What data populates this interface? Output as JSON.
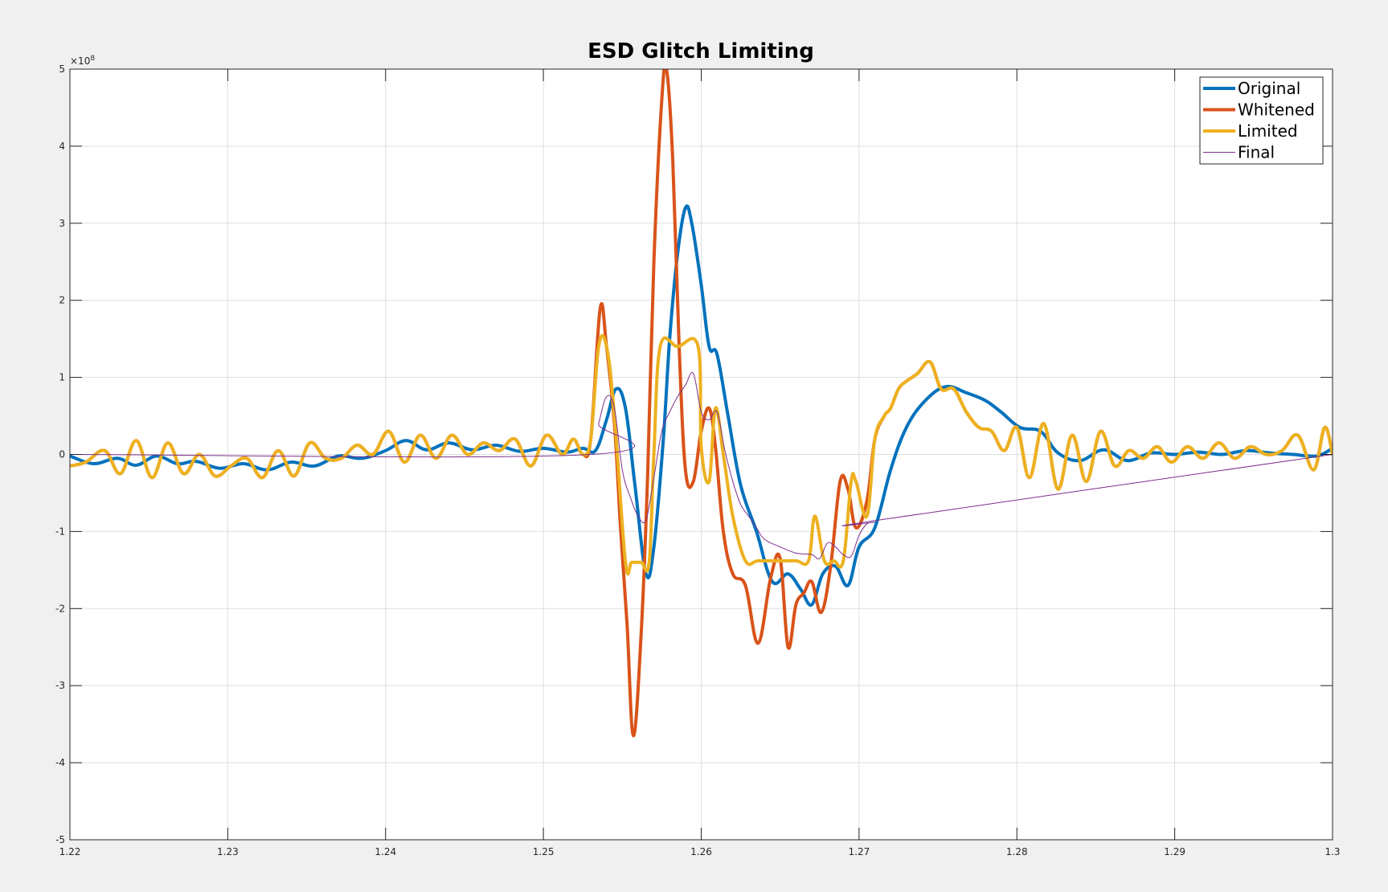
{
  "chart_data": {
    "type": "line",
    "title": "ESD Glitch Limiting",
    "xlabel": "",
    "ylabel": "",
    "xlim": [
      1.22,
      1.3
    ],
    "ylim": [
      -5,
      5
    ],
    "y_exponent_label": "×10",
    "y_exponent_power": "8",
    "x_ticks": [
      1.22,
      1.23,
      1.24,
      1.25,
      1.26,
      1.27,
      1.28,
      1.29,
      1.3
    ],
    "x_tick_labels": [
      "1.22",
      "1.23",
      "1.24",
      "1.25",
      "1.26",
      "1.27",
      "1.28",
      "1.29",
      "1.3"
    ],
    "y_ticks": [
      -5,
      -4,
      -3,
      -2,
      -1,
      0,
      1,
      2,
      3,
      4,
      5
    ],
    "y_tick_labels": [
      "-5",
      "-4",
      "-3",
      "-2",
      "-1",
      "0",
      "1",
      "2",
      "3",
      "4",
      "5"
    ],
    "grid": true,
    "legend_position": "top-right",
    "series": [
      {
        "name": "Original",
        "color": "#0072BD",
        "x": [
          1.22,
          1.2215,
          1.223,
          1.2242,
          1.2255,
          1.2268,
          1.228,
          1.2295,
          1.231,
          1.2325,
          1.234,
          1.2355,
          1.237,
          1.2385,
          1.24,
          1.2413,
          1.2426,
          1.244,
          1.2455,
          1.247,
          1.2485,
          1.25,
          1.2515,
          1.2525,
          1.2533,
          1.254,
          1.2546,
          1.2552,
          1.2558,
          1.2565,
          1.257,
          1.2576,
          1.258,
          1.2585,
          1.259,
          1.2594,
          1.26,
          1.2605,
          1.261,
          1.2617,
          1.2625,
          1.2635,
          1.2645,
          1.2655,
          1.2663,
          1.267,
          1.2677,
          1.2685,
          1.2693,
          1.27,
          1.271,
          1.272,
          1.273,
          1.2742,
          1.2755,
          1.2768,
          1.278,
          1.279,
          1.2802,
          1.2815,
          1.2826,
          1.284,
          1.2855,
          1.287,
          1.2885,
          1.29,
          1.2915,
          1.293,
          1.2945,
          1.296,
          1.2975,
          1.299,
          1.3
        ],
        "y": [
          -0.02,
          -0.12,
          -0.05,
          -0.14,
          -0.02,
          -0.12,
          -0.09,
          -0.18,
          -0.12,
          -0.2,
          -0.1,
          -0.15,
          -0.02,
          -0.05,
          0.05,
          0.18,
          0.06,
          0.15,
          0.06,
          0.12,
          0.04,
          0.08,
          0.03,
          0.08,
          0.05,
          0.45,
          0.85,
          0.6,
          -0.4,
          -1.55,
          -1.2,
          0.2,
          1.5,
          2.6,
          3.2,
          3.0,
          2.2,
          1.4,
          1.3,
          0.5,
          -0.4,
          -1.0,
          -1.65,
          -1.55,
          -1.75,
          -1.95,
          -1.55,
          -1.45,
          -1.7,
          -1.2,
          -0.95,
          -0.2,
          0.35,
          0.7,
          0.88,
          0.8,
          0.7,
          0.55,
          0.35,
          0.3,
          0.02,
          -0.08,
          0.06,
          -0.08,
          0.02,
          0.0,
          0.03,
          0.0,
          0.05,
          0.02,
          0.0,
          -0.02,
          0.08
        ]
      },
      {
        "name": "Whitened",
        "color": "#D95319",
        "x": [
          1.22,
          1.221,
          1.2222,
          1.2232,
          1.2242,
          1.2252,
          1.2262,
          1.2272,
          1.2282,
          1.2292,
          1.2302,
          1.2312,
          1.2322,
          1.2332,
          1.2342,
          1.2352,
          1.2362,
          1.2372,
          1.2382,
          1.2392,
          1.2402,
          1.2412,
          1.2422,
          1.2432,
          1.2442,
          1.2452,
          1.2462,
          1.2472,
          1.2482,
          1.2492,
          1.2502,
          1.2512,
          1.2519,
          1.2525,
          1.253,
          1.2536,
          1.254,
          1.2545,
          1.2549,
          1.2553,
          1.2557,
          1.2562,
          1.2566,
          1.257,
          1.2575,
          1.2578,
          1.2582,
          1.2586,
          1.259,
          1.2595,
          1.26,
          1.2605,
          1.2609,
          1.2614,
          1.262,
          1.2628,
          1.2636,
          1.2644,
          1.265,
          1.2655,
          1.266,
          1.2665,
          1.267,
          1.2676,
          1.2682,
          1.2688,
          1.2693,
          1.2698,
          1.2705,
          1.271,
          1.2716,
          1.272,
          1.2725,
          1.273,
          1.2737,
          1.2745,
          1.2752,
          1.276,
          1.2768,
          1.2776,
          1.2784,
          1.2792,
          1.28,
          1.2808,
          1.2817,
          1.2826,
          1.2835,
          1.2844,
          1.2853,
          1.2862,
          1.2871,
          1.288,
          1.2889,
          1.2898,
          1.2908,
          1.2918,
          1.2928,
          1.2938,
          1.2948,
          1.2958,
          1.2968,
          1.2978,
          1.2988,
          1.2995,
          1.3
        ],
        "y": [
          -0.15,
          -0.1,
          0.05,
          -0.25,
          0.18,
          -0.3,
          0.15,
          -0.25,
          0.0,
          -0.28,
          -0.15,
          -0.05,
          -0.3,
          0.05,
          -0.28,
          0.15,
          -0.05,
          -0.05,
          0.12,
          0.0,
          0.3,
          -0.1,
          0.25,
          -0.05,
          0.25,
          0.0,
          0.15,
          0.05,
          0.2,
          -0.15,
          0.25,
          0.0,
          0.2,
          0.0,
          0.2,
          1.9,
          1.4,
          0.4,
          -1.0,
          -2.2,
          -3.65,
          -2.3,
          -0.3,
          2.5,
          4.6,
          5.0,
          3.8,
          1.4,
          -0.2,
          -0.35,
          0.3,
          0.6,
          0.1,
          -1.0,
          -1.55,
          -1.7,
          -2.45,
          -1.6,
          -1.35,
          -2.5,
          -1.95,
          -1.8,
          -1.65,
          -2.05,
          -1.45,
          -0.35,
          -0.45,
          -0.95,
          -0.6,
          0.2,
          0.5,
          0.6,
          0.85,
          0.95,
          1.05,
          1.2,
          0.85,
          0.85,
          0.55,
          0.35,
          0.3,
          0.05,
          0.35,
          -0.3,
          0.4,
          -0.45,
          0.25,
          -0.35,
          0.3,
          -0.15,
          0.05,
          -0.05,
          0.1,
          -0.1,
          0.1,
          -0.05,
          0.15,
          -0.05,
          0.1,
          0.0,
          0.05,
          0.25,
          -0.2,
          0.35,
          0.0
        ]
      },
      {
        "name": "Limited",
        "color": "#EDB120",
        "x": [
          1.22,
          1.221,
          1.2222,
          1.2232,
          1.2242,
          1.2252,
          1.2262,
          1.2272,
          1.2282,
          1.2292,
          1.2302,
          1.2312,
          1.2322,
          1.2332,
          1.2342,
          1.2352,
          1.2362,
          1.2372,
          1.2382,
          1.2392,
          1.2402,
          1.2412,
          1.2422,
          1.2432,
          1.2442,
          1.2452,
          1.2462,
          1.2472,
          1.2482,
          1.2492,
          1.2502,
          1.2512,
          1.2519,
          1.2525,
          1.253,
          1.2535,
          1.254,
          1.2545,
          1.2552,
          1.2556,
          1.2562,
          1.2567,
          1.257,
          1.2574,
          1.2585,
          1.2598,
          1.26,
          1.2605,
          1.2609,
          1.2614,
          1.262,
          1.2628,
          1.2636,
          1.2648,
          1.266,
          1.2668,
          1.2672,
          1.2678,
          1.2684,
          1.269,
          1.2695,
          1.2698,
          1.2705,
          1.271,
          1.2716,
          1.272,
          1.2725,
          1.273,
          1.2737,
          1.2745,
          1.2752,
          1.276,
          1.2768,
          1.2776,
          1.2784,
          1.2792,
          1.28,
          1.2808,
          1.2817,
          1.2826,
          1.2835,
          1.2844,
          1.2853,
          1.2862,
          1.2871,
          1.288,
          1.2889,
          1.2898,
          1.2908,
          1.2918,
          1.2928,
          1.2938,
          1.2948,
          1.2958,
          1.2968,
          1.2978,
          1.2988,
          1.2995,
          1.3
        ],
        "y": [
          -0.15,
          -0.1,
          0.05,
          -0.25,
          0.18,
          -0.3,
          0.15,
          -0.25,
          0.0,
          -0.28,
          -0.15,
          -0.05,
          -0.3,
          0.05,
          -0.28,
          0.15,
          -0.05,
          -0.05,
          0.12,
          0.0,
          0.3,
          -0.1,
          0.25,
          -0.05,
          0.25,
          0.0,
          0.15,
          0.05,
          0.2,
          -0.15,
          0.25,
          0.0,
          0.2,
          0.0,
          0.2,
          1.4,
          1.4,
          0.5,
          -1.4,
          -1.4,
          -1.4,
          -1.4,
          0.0,
          1.4,
          1.4,
          1.4,
          0.1,
          -0.35,
          0.6,
          0.0,
          -0.8,
          -1.38,
          -1.38,
          -1.38,
          -1.38,
          -1.38,
          -0.8,
          -1.38,
          -1.38,
          -1.38,
          -0.35,
          -0.35,
          -0.8,
          0.2,
          0.5,
          0.6,
          0.85,
          0.95,
          1.05,
          1.2,
          0.85,
          0.85,
          0.55,
          0.35,
          0.3,
          0.05,
          0.35,
          -0.3,
          0.4,
          -0.45,
          0.25,
          -0.35,
          0.3,
          -0.15,
          0.05,
          -0.05,
          0.1,
          -0.1,
          0.1,
          -0.05,
          0.15,
          -0.05,
          0.1,
          0.0,
          0.05,
          0.25,
          -0.2,
          0.35,
          0.0
        ]
      },
      {
        "name": "Final",
        "color": "#7E2F8E",
        "x": [
          1.22,
          1.253,
          1.2535,
          1.254,
          1.2545,
          1.255,
          1.2555,
          1.256,
          1.2565,
          1.257,
          1.2575,
          1.258,
          1.2585,
          1.259,
          1.2595,
          1.26,
          1.2605,
          1.261,
          1.2615,
          1.262,
          1.2625,
          1.263,
          1.2635,
          1.264,
          1.265,
          1.266,
          1.267,
          1.2675,
          1.268,
          1.2685,
          1.269,
          1.2695,
          1.27,
          1.2705,
          1.271,
          1.2713,
          1.3
        ],
        "y": [
          0.0,
          0.0,
          0.4,
          0.75,
          0.6,
          -0.2,
          -0.55,
          -0.8,
          -0.85,
          -0.3,
          0.3,
          0.55,
          0.75,
          0.9,
          1.05,
          0.55,
          0.45,
          0.55,
          0.05,
          -0.35,
          -0.65,
          -0.8,
          -0.95,
          -1.1,
          -1.2,
          -1.28,
          -1.3,
          -1.35,
          -1.15,
          -1.2,
          -1.3,
          -1.32,
          -1.05,
          -0.9,
          -0.88,
          -0.85,
          0.0
        ]
      }
    ]
  }
}
